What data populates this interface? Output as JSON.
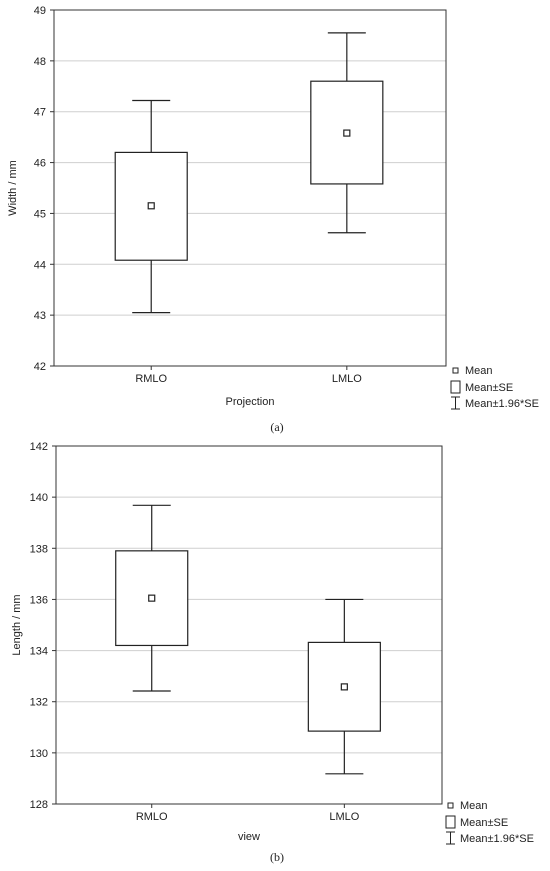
{
  "chart_data": [
    {
      "type": "box",
      "panel_label": "(a)",
      "xlabel": "Projection",
      "ylabel": "Width / mm",
      "ylim": [
        42,
        49
      ],
      "yticks": [
        "42",
        "43",
        "44",
        "45",
        "46",
        "47",
        "48",
        "49"
      ],
      "grid": true,
      "legend_placement": "bottom-right",
      "categories": [
        "RMLO",
        "LMLO"
      ],
      "series": [
        {
          "mean": 45.15,
          "se_low": 44.08,
          "se_high": 46.2,
          "ci_low": 43.05,
          "ci_high": 47.22
        },
        {
          "mean": 46.58,
          "se_low": 45.58,
          "se_high": 47.6,
          "ci_low": 44.62,
          "ci_high": 48.55
        }
      ],
      "legend": [
        "Mean",
        "Mean±SE",
        "Mean±1.96*SE"
      ]
    },
    {
      "type": "box",
      "panel_label": "(b)",
      "xlabel": "view",
      "ylabel": "Length / mm",
      "ylim": [
        128,
        142
      ],
      "yticks": [
        "128",
        "130",
        "132",
        "134",
        "136",
        "138",
        "140",
        "142"
      ],
      "grid": true,
      "legend_placement": "bottom-right",
      "categories": [
        "RMLO",
        "LMLO"
      ],
      "series": [
        {
          "mean": 136.05,
          "se_low": 134.2,
          "se_high": 137.9,
          "ci_low": 132.42,
          "ci_high": 139.68
        },
        {
          "mean": 132.58,
          "se_low": 130.85,
          "se_high": 134.32,
          "ci_low": 129.18,
          "ci_high": 136.0
        }
      ],
      "legend": [
        "Mean",
        "Mean±SE",
        "Mean±1.96*SE"
      ]
    }
  ]
}
